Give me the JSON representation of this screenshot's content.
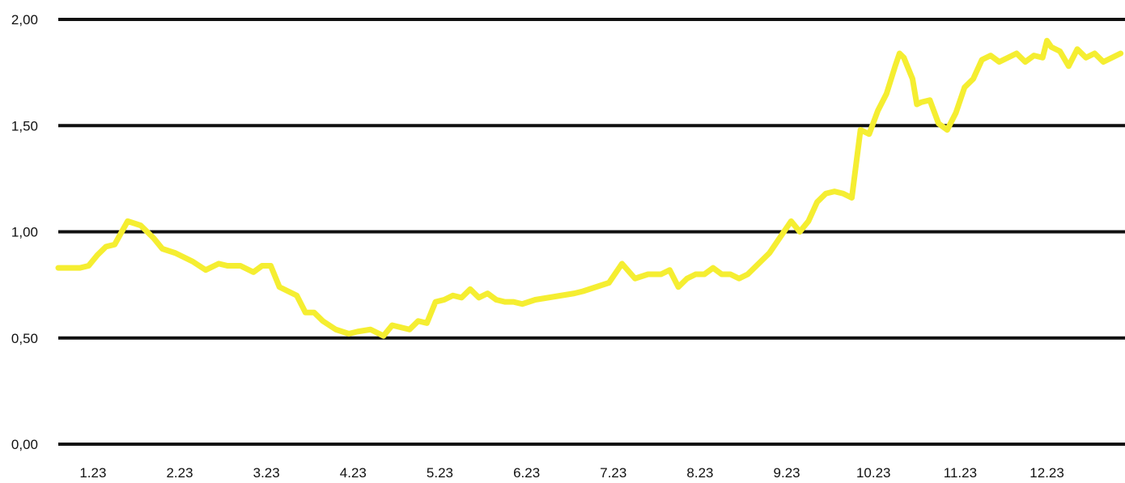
{
  "chart_data": {
    "type": "line",
    "title": "",
    "xlabel": "",
    "ylabel": "",
    "x_ticks": [
      "1.23",
      "2.23",
      "3.23",
      "4.23",
      "5.23",
      "6.23",
      "7.23",
      "8.23",
      "9.23",
      "10.23",
      "11.23",
      "12.23"
    ],
    "y_ticks": [
      "0,00",
      "0,50",
      "1,00",
      "1,50",
      "2,00"
    ],
    "ylim": [
      0,
      2
    ],
    "xlim": [
      0.6,
      12.9
    ],
    "grid": "horizontal",
    "legend": "none",
    "colors": {
      "series": "#F5EE31",
      "grid": "#111111",
      "text": "#111111"
    },
    "series": [
      {
        "x": [
          0.6,
          0.75,
          0.85,
          0.95,
          1.05,
          1.15,
          1.25,
          1.4,
          1.55,
          1.7,
          1.8,
          1.95,
          2.05,
          2.15,
          2.3,
          2.45,
          2.55,
          2.7,
          2.85,
          2.95,
          3.05,
          3.15,
          3.25,
          3.35,
          3.45,
          3.55,
          3.65,
          3.8,
          3.95,
          4.05,
          4.2,
          4.35,
          4.45,
          4.55,
          4.65,
          4.75,
          4.85,
          4.95,
          5.05,
          5.15,
          5.25,
          5.35,
          5.45,
          5.55,
          5.65,
          5.75,
          5.85,
          5.95,
          6.1,
          6.25,
          6.4,
          6.55,
          6.65,
          6.8,
          6.95,
          7.1,
          7.25,
          7.4,
          7.55,
          7.65,
          7.75,
          7.85,
          7.95,
          8.05,
          8.15,
          8.25,
          8.35,
          8.45,
          8.55,
          8.65,
          8.8,
          8.95,
          9.05,
          9.15,
          9.25,
          9.35,
          9.45,
          9.55,
          9.65,
          9.75,
          9.85,
          9.95,
          10.05,
          10.15,
          10.25,
          10.3,
          10.35,
          10.4,
          10.45,
          10.5,
          10.55,
          10.65,
          10.75,
          10.85,
          10.95,
          11.05,
          11.15,
          11.25,
          11.35,
          11.45,
          11.55,
          11.65,
          11.75,
          11.85,
          11.95,
          12.0,
          12.05,
          12.15,
          12.25,
          12.35,
          12.45,
          12.55,
          12.65,
          12.75,
          12.85
        ],
        "y": [
          0.83,
          0.83,
          0.83,
          0.84,
          0.89,
          0.93,
          0.94,
          1.05,
          1.03,
          0.97,
          0.92,
          0.9,
          0.88,
          0.86,
          0.82,
          0.85,
          0.84,
          0.84,
          0.81,
          0.84,
          0.84,
          0.74,
          0.72,
          0.7,
          0.62,
          0.62,
          0.58,
          0.54,
          0.52,
          0.53,
          0.54,
          0.51,
          0.56,
          0.55,
          0.54,
          0.58,
          0.57,
          0.67,
          0.68,
          0.7,
          0.69,
          0.73,
          0.69,
          0.71,
          0.68,
          0.67,
          0.67,
          0.66,
          0.68,
          0.69,
          0.7,
          0.71,
          0.72,
          0.74,
          0.76,
          0.85,
          0.78,
          0.8,
          0.8,
          0.82,
          0.74,
          0.78,
          0.8,
          0.8,
          0.83,
          0.8,
          0.8,
          0.78,
          0.8,
          0.84,
          0.9,
          0.99,
          1.05,
          1.0,
          1.05,
          1.14,
          1.18,
          1.19,
          1.18,
          1.16,
          1.48,
          1.46,
          1.57,
          1.65,
          1.78,
          1.84,
          1.82,
          1.77,
          1.72,
          1.6,
          1.61,
          1.62,
          1.51,
          1.48,
          1.56,
          1.68,
          1.72,
          1.81,
          1.83,
          1.8,
          1.82,
          1.84,
          1.8,
          1.83,
          1.82,
          1.9,
          1.87,
          1.85,
          1.78,
          1.86,
          1.82,
          1.84,
          1.8,
          1.82,
          1.84
        ]
      }
    ]
  }
}
